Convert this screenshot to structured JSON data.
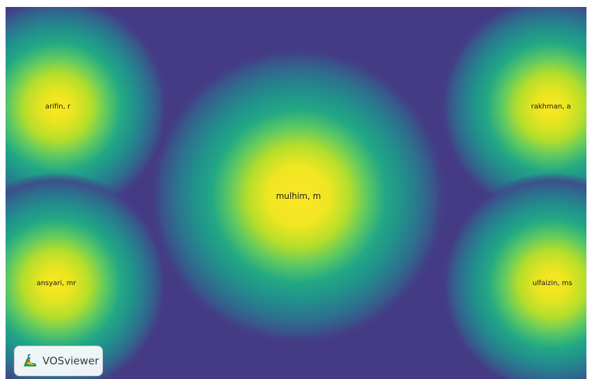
{
  "nodes": [
    {
      "label": "arifin, r",
      "size": "small"
    },
    {
      "label": "rakhman, a",
      "size": "small"
    },
    {
      "label": "mulhim, m",
      "size": "large"
    },
    {
      "label": "ansyari, mr",
      "size": "small"
    },
    {
      "label": "ulfaizin, ms",
      "size": "small"
    }
  ],
  "brand": {
    "name": "VOSviewer",
    "icon": "vosviewer-logo-icon"
  },
  "colors": {
    "background": "#443b84",
    "low": "#3e4a89",
    "mid": "#21918c",
    "high": "#fde725"
  }
}
